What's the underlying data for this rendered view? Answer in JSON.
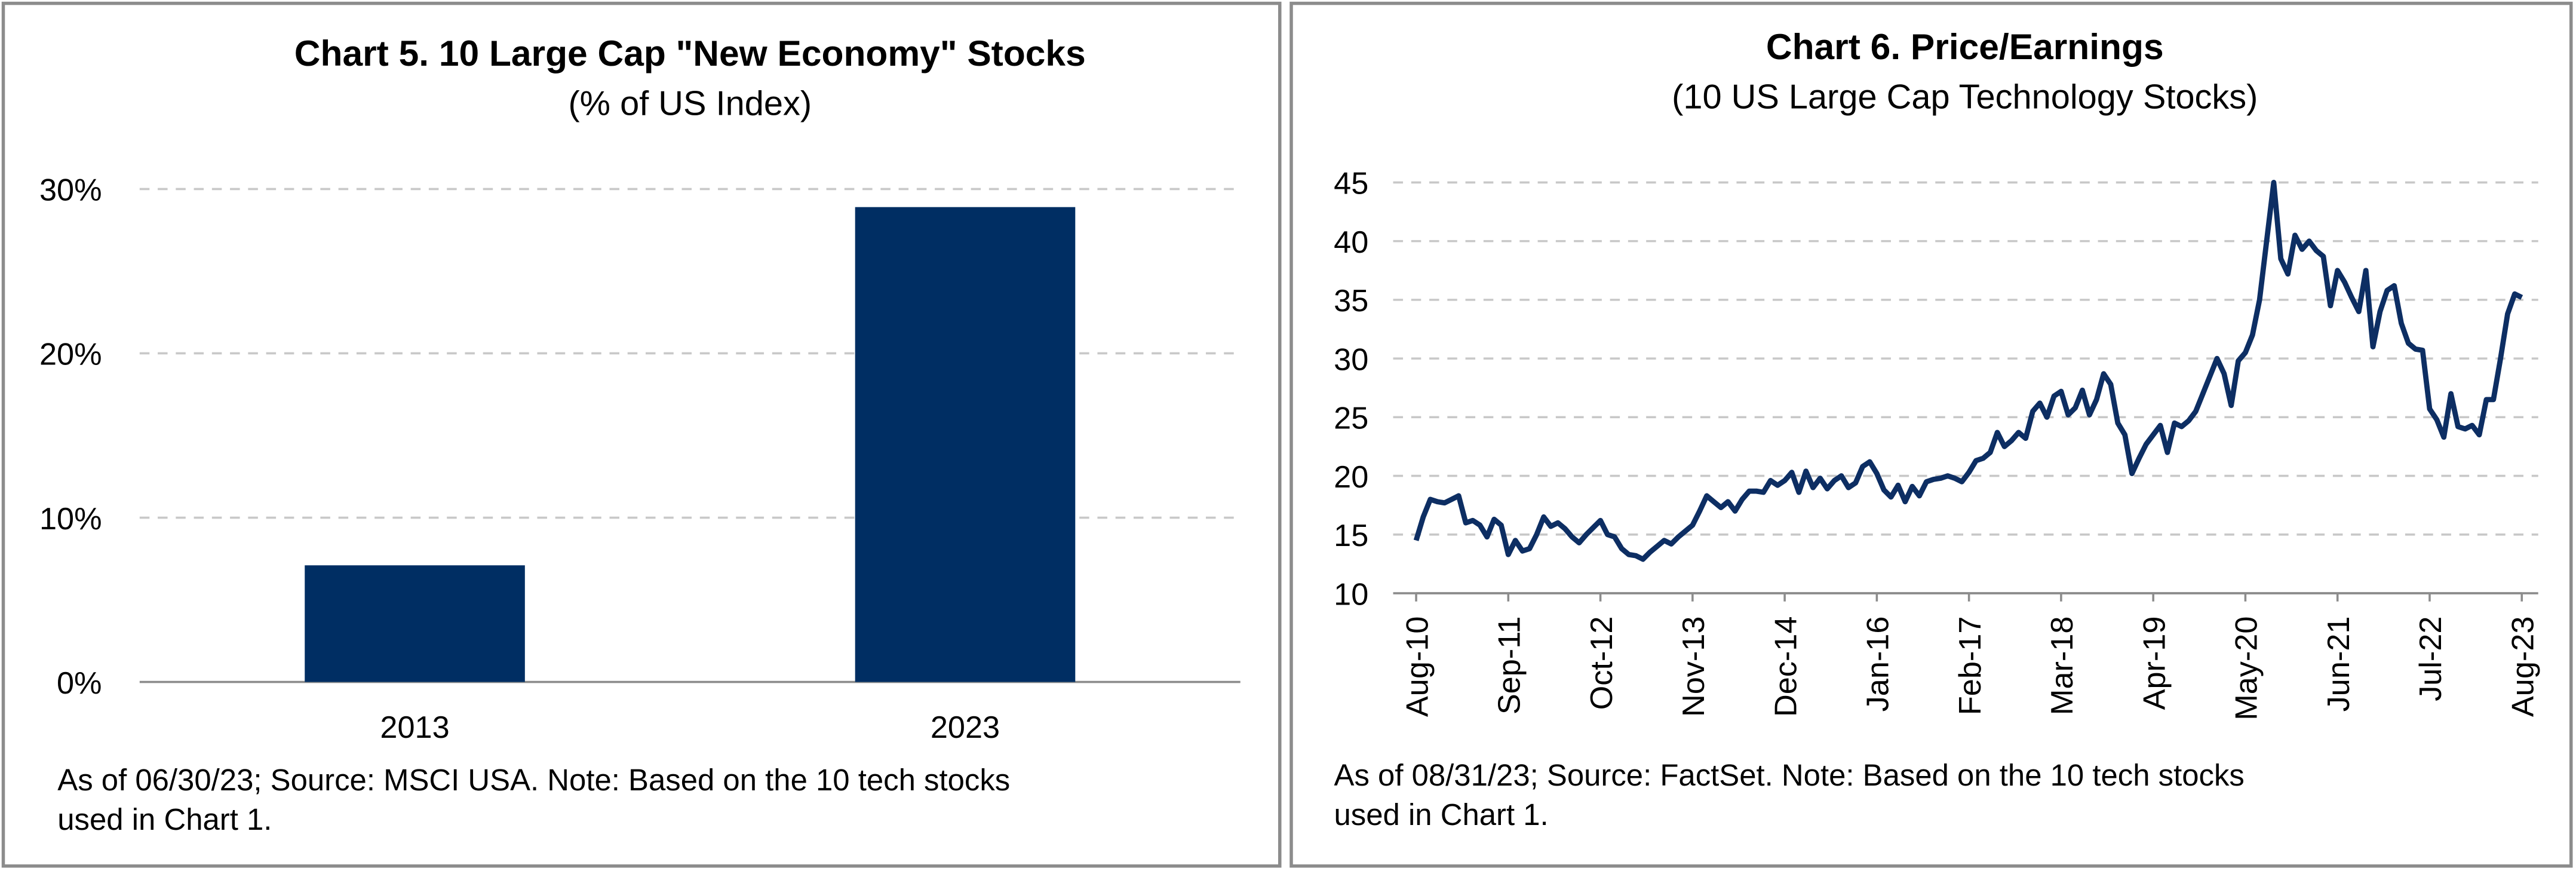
{
  "chart_data": [
    {
      "type": "bar",
      "title": "Chart 5. 10 Large Cap \"New Economy\" Stocks",
      "subtitle": "(% of US Index)",
      "categories": [
        "2013",
        "2023"
      ],
      "values": [
        7.1,
        28.9
      ],
      "color": "#002e63",
      "ylim": [
        0,
        30
      ],
      "yticks": [
        {
          "value": 0,
          "label": "0%"
        },
        {
          "value": 10,
          "label": "10%"
        },
        {
          "value": 20,
          "label": "20%"
        },
        {
          "value": 30,
          "label": "30%"
        }
      ],
      "grid": true,
      "note": [
        "As of 06/30/23; Source: MSCI USA. Note: Based on the 10 tech stocks",
        "used in Chart 1."
      ]
    },
    {
      "type": "line",
      "title": "Chart 6. Price/Earnings",
      "subtitle": "(10 US Large Cap Technology Stocks)",
      "categories": [
        "Aug-10",
        null,
        null,
        null,
        null,
        null,
        null,
        null,
        null,
        null,
        null,
        null,
        null,
        "Sep-11",
        null,
        null,
        null,
        null,
        null,
        null,
        null,
        null,
        null,
        null,
        null,
        null,
        "Oct-12",
        null,
        null,
        null,
        null,
        null,
        null,
        null,
        null,
        null,
        null,
        null,
        null,
        "Nov-13",
        null,
        null,
        null,
        null,
        null,
        null,
        null,
        null,
        null,
        null,
        null,
        null,
        "Dec-14",
        null,
        null,
        null,
        null,
        null,
        null,
        null,
        null,
        null,
        null,
        null,
        null,
        "Jan-16",
        null,
        null,
        null,
        null,
        null,
        null,
        null,
        null,
        null,
        null,
        null,
        null,
        "Feb-17",
        null,
        null,
        null,
        null,
        null,
        null,
        null,
        null,
        null,
        null,
        null,
        null,
        "Mar-18",
        null,
        null,
        null,
        null,
        null,
        null,
        null,
        null,
        null,
        null,
        null,
        null,
        "Apr-19",
        null,
        null,
        null,
        null,
        null,
        null,
        null,
        null,
        null,
        null,
        null,
        null,
        "May-20",
        null,
        null,
        null,
        null,
        null,
        null,
        null,
        null,
        null,
        null,
        null,
        null,
        "Jun-21",
        null,
        null,
        null,
        null,
        null,
        null,
        null,
        null,
        null,
        null,
        null,
        null,
        "Jul-22",
        null,
        null,
        null,
        null,
        null,
        null,
        null,
        null,
        null,
        null,
        null,
        null,
        "Aug-23"
      ],
      "values": [
        14.5,
        16.5,
        18,
        17.8,
        17.7,
        18,
        18.3,
        16,
        16.2,
        15.8,
        14.8,
        16.3,
        15.8,
        13.3,
        14.5,
        13.6,
        13.8,
        15,
        16.5,
        15.7,
        16,
        15.5,
        14.8,
        14.3,
        15,
        15.6,
        16.2,
        15,
        14.8,
        13.8,
        13.3,
        13.2,
        12.9,
        13.5,
        14,
        14.5,
        14.2,
        14.8,
        15.3,
        15.8,
        17,
        18.3,
        17.8,
        17.3,
        17.8,
        17,
        18,
        18.7,
        18.7,
        18.6,
        19.6,
        19.2,
        19.6,
        20.3,
        18.6,
        20.4,
        19,
        19.8,
        18.9,
        19.6,
        20,
        19,
        19.4,
        20.8,
        21.2,
        20.2,
        18.8,
        18.2,
        19.2,
        17.8,
        19.1,
        18.3,
        19.5,
        19.7,
        19.8,
        20,
        19.8,
        19.5,
        20.3,
        21.3,
        21.5,
        22,
        23.7,
        22.5,
        23,
        23.7,
        23.2,
        25.5,
        26.2,
        25,
        26.8,
        27.2,
        25.2,
        25.8,
        27.3,
        25.2,
        26.5,
        28.7,
        27.8,
        24.5,
        23.5,
        20.2,
        21.5,
        22.7,
        23.5,
        24.3,
        22,
        24.5,
        24.2,
        24.7,
        25.5,
        27,
        28.5,
        30,
        28.7,
        26,
        29.8,
        30.5,
        32,
        35,
        40,
        45,
        38.5,
        37.2,
        40.5,
        39.3,
        40,
        39.2,
        38.7,
        34.5,
        37.5,
        36.5,
        35.2,
        34,
        37.5,
        31,
        34,
        35.8,
        36.2,
        33,
        31.3,
        30.8,
        30.7,
        25.7,
        24.8,
        23.3,
        27,
        24.2,
        24,
        24.3,
        23.5,
        26.5,
        26.5,
        30,
        33.8,
        35.5,
        35.2
      ],
      "color": "#0d2e63",
      "ylim": [
        10,
        45
      ],
      "yticks": [
        10,
        15,
        20,
        25,
        30,
        35,
        40,
        45
      ],
      "grid": true,
      "note": [
        "As of 08/31/23; Source: FactSet. Note: Based on the 10 tech stocks",
        "used in Chart 1."
      ]
    }
  ]
}
